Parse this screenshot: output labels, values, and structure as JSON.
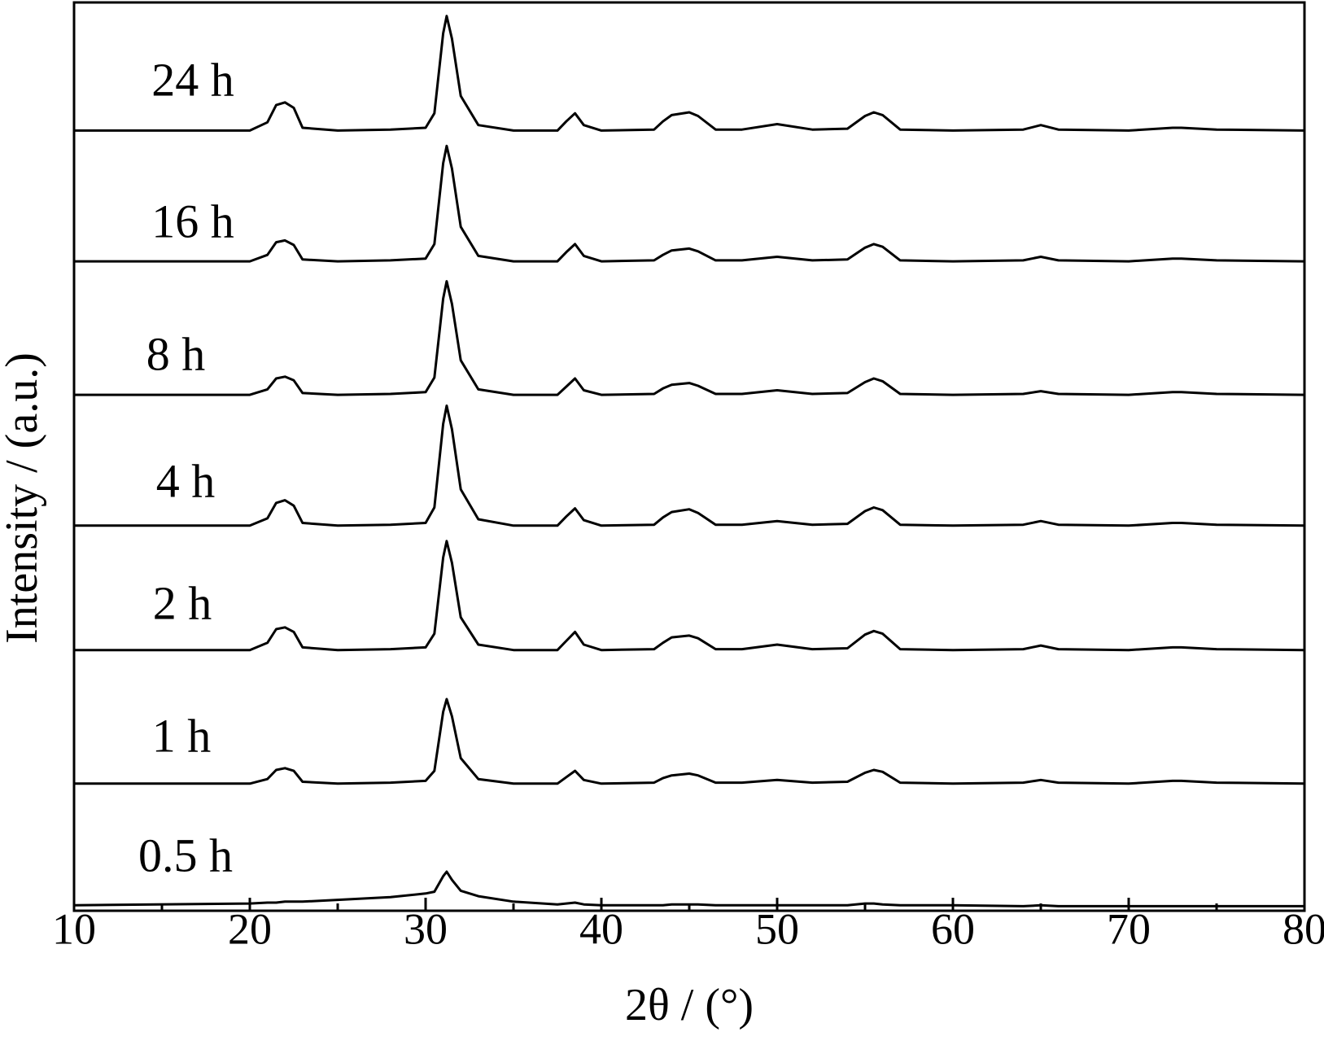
{
  "chart_data": {
    "type": "line",
    "xlabel": "2θ / (°)",
    "ylabel": "Intensity / (a.u.)",
    "x": [
      10,
      20,
      21,
      21.5,
      22,
      22.5,
      23,
      25,
      28,
      30,
      30.5,
      31,
      31.2,
      31.5,
      32,
      33,
      35,
      37.5,
      38,
      38.5,
      39,
      40,
      43,
      43.5,
      44,
      45,
      45.5,
      46.5,
      48,
      50,
      52,
      54,
      55,
      55.5,
      56,
      57,
      60,
      64,
      65,
      66,
      70,
      72.5,
      73,
      75,
      80
    ],
    "xlim": [
      10,
      80
    ],
    "xticks": [
      10,
      20,
      30,
      40,
      50,
      60,
      70,
      80
    ],
    "xminorticks": [
      15,
      25,
      35,
      45,
      55,
      65,
      75
    ],
    "ylim": [
      0,
      100
    ],
    "series": [
      {
        "name": "24 h",
        "color": "#000000",
        "values": [
          85.9,
          85.9,
          86.8,
          88.7,
          89.0,
          88.4,
          86.2,
          85.9,
          86.0,
          86.2,
          87.8,
          96.6,
          98.5,
          96.0,
          89.7,
          86.5,
          85.9,
          85.9,
          86.9,
          87.8,
          86.5,
          85.9,
          86.0,
          86.9,
          87.6,
          87.9,
          87.5,
          86.0,
          86.0,
          86.6,
          86.0,
          86.1,
          87.5,
          87.9,
          87.6,
          86.0,
          85.9,
          86.0,
          86.5,
          86.0,
          85.9,
          86.2,
          86.2,
          86.0,
          85.9
        ]
      },
      {
        "name": "16 h",
        "color": "#000000",
        "values": [
          71.5,
          71.5,
          72.2,
          73.6,
          73.8,
          73.3,
          71.7,
          71.5,
          71.6,
          71.8,
          73.4,
          82.3,
          84.2,
          81.7,
          75.3,
          72.1,
          71.5,
          71.5,
          72.5,
          73.4,
          72.1,
          71.5,
          71.6,
          72.2,
          72.7,
          72.9,
          72.6,
          71.6,
          71.6,
          72.0,
          71.6,
          71.7,
          73.0,
          73.4,
          73.1,
          71.6,
          71.5,
          71.6,
          72.0,
          71.6,
          71.5,
          71.8,
          71.8,
          71.6,
          71.5
        ]
      },
      {
        "name": "8 h",
        "color": "#000000",
        "values": [
          56.8,
          56.8,
          57.4,
          58.6,
          58.8,
          58.4,
          57.0,
          56.8,
          56.9,
          57.1,
          58.7,
          67.4,
          69.3,
          66.8,
          60.6,
          57.4,
          56.8,
          56.8,
          57.7,
          58.6,
          57.3,
          56.8,
          56.9,
          57.5,
          57.9,
          58.1,
          57.8,
          56.9,
          56.9,
          57.3,
          56.9,
          57.0,
          58.2,
          58.6,
          58.3,
          56.9,
          56.8,
          56.9,
          57.2,
          56.9,
          56.8,
          57.1,
          57.1,
          56.9,
          56.8
        ]
      },
      {
        "name": "4 h",
        "color": "#000000",
        "values": [
          42.4,
          42.4,
          43.2,
          44.9,
          45.2,
          44.6,
          42.7,
          42.4,
          42.5,
          42.7,
          44.4,
          53.6,
          55.6,
          53.0,
          46.4,
          43.1,
          42.4,
          42.4,
          43.4,
          44.3,
          43.0,
          42.4,
          42.5,
          43.3,
          43.9,
          44.2,
          43.8,
          42.5,
          42.5,
          42.9,
          42.5,
          42.6,
          44.0,
          44.4,
          44.1,
          42.5,
          42.4,
          42.5,
          42.9,
          42.5,
          42.4,
          42.7,
          42.7,
          42.5,
          42.4
        ]
      },
      {
        "name": "2 h",
        "color": "#000000",
        "values": [
          28.7,
          28.7,
          29.5,
          31.0,
          31.2,
          30.7,
          29.0,
          28.7,
          28.8,
          29.0,
          30.5,
          38.9,
          40.7,
          38.3,
          32.3,
          29.3,
          28.7,
          28.7,
          29.7,
          30.7,
          29.3,
          28.7,
          28.8,
          29.5,
          30.1,
          30.3,
          30.0,
          28.8,
          28.8,
          29.3,
          28.8,
          28.9,
          30.4,
          30.8,
          30.5,
          28.8,
          28.7,
          28.8,
          29.2,
          28.8,
          28.7,
          29.0,
          29.0,
          28.8,
          28.7
        ]
      },
      {
        "name": "1 h",
        "color": "#000000",
        "values": [
          14.0,
          14.0,
          14.5,
          15.5,
          15.7,
          15.4,
          14.2,
          14.0,
          14.1,
          14.3,
          15.4,
          21.9,
          23.3,
          21.4,
          16.8,
          14.5,
          14.0,
          14.0,
          14.7,
          15.4,
          14.4,
          14.0,
          14.1,
          14.6,
          14.9,
          15.1,
          14.9,
          14.1,
          14.1,
          14.4,
          14.1,
          14.2,
          15.2,
          15.5,
          15.3,
          14.1,
          14.0,
          14.1,
          14.4,
          14.1,
          14.0,
          14.3,
          14.3,
          14.1,
          14.0
        ]
      },
      {
        "name": "0.5 h",
        "color": "#000000",
        "values": [
          0.6,
          0.8,
          0.9,
          0.9,
          1.0,
          1.0,
          1.0,
          1.2,
          1.5,
          1.9,
          2.1,
          3.8,
          4.3,
          3.4,
          2.2,
          1.6,
          1.0,
          0.7,
          0.8,
          0.9,
          0.7,
          0.6,
          0.6,
          0.6,
          0.7,
          0.7,
          0.7,
          0.6,
          0.6,
          0.6,
          0.6,
          0.6,
          0.8,
          0.8,
          0.7,
          0.6,
          0.6,
          0.5,
          0.6,
          0.5,
          0.5,
          0.5,
          0.5,
          0.5,
          0.5
        ]
      }
    ]
  }
}
